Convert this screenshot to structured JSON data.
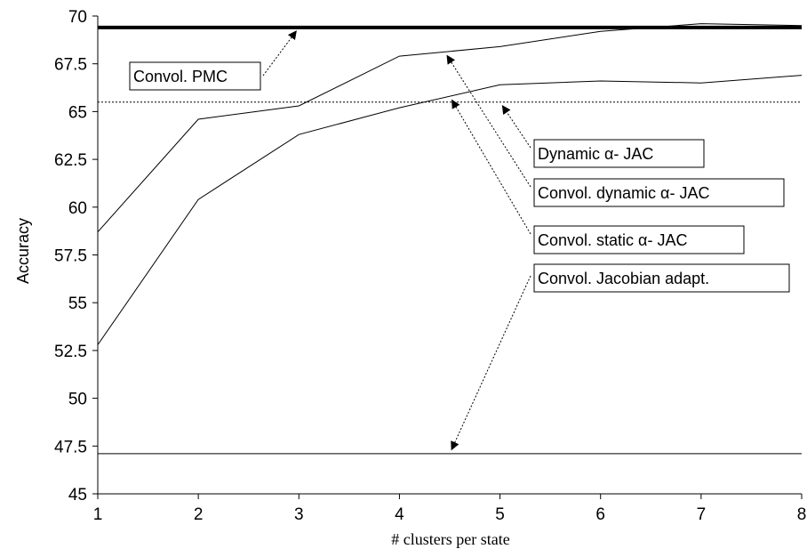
{
  "chart_data": {
    "type": "line",
    "title": "",
    "xlabel": "# clusters per state",
    "ylabel": "Accuracy",
    "x": [
      1,
      2,
      3,
      4,
      5,
      6,
      7,
      8
    ],
    "xlim": [
      1,
      8
    ],
    "ylim": [
      45,
      70
    ],
    "yticks": [
      45,
      47.5,
      50,
      52.5,
      55,
      57.5,
      60,
      62.5,
      65,
      67.5,
      70
    ],
    "ytick_labels": [
      "45",
      "47.5",
      "50",
      "52.5",
      "55",
      "57.5",
      "60",
      "62.5",
      "65",
      "67.5",
      "70"
    ],
    "xtick_labels": [
      "1",
      "2",
      "3",
      "4",
      "5",
      "6",
      "7",
      "8"
    ],
    "grid": false,
    "series": [
      {
        "name": "Convol. PMC",
        "style": "thick",
        "values": [
          69.4,
          69.4,
          69.4,
          69.4,
          69.4,
          69.4,
          69.4,
          69.4
        ]
      },
      {
        "name": "Convol. dynamic α- JAC",
        "style": "solid",
        "values": [
          58.7,
          64.6,
          65.3,
          67.9,
          68.4,
          69.2,
          69.6,
          69.5
        ]
      },
      {
        "name": "Dynamic α- JAC",
        "style": "dotted",
        "values": [
          65.5,
          65.5,
          65.5,
          65.5,
          65.5,
          65.5,
          65.5,
          65.5
        ]
      },
      {
        "name": "Convol. static α- JAC",
        "style": "solid",
        "values": [
          52.8,
          60.4,
          63.8,
          65.2,
          66.4,
          66.6,
          66.5,
          66.9
        ]
      },
      {
        "name": "Convol. Jacobian adapt.",
        "style": "solid",
        "values": [
          47.1,
          47.1,
          47.1,
          47.1,
          47.1,
          47.1,
          47.1,
          47.1
        ]
      }
    ],
    "annotations": [
      {
        "label": "Convol. PMC",
        "series_index": 0,
        "arrow_to_x": 3.0
      },
      {
        "label": "Dynamic α- JAC",
        "series_index": 2,
        "arrow_to_x": 5.0
      },
      {
        "label": "Convol. dynamic α- JAC",
        "series_index": 1,
        "arrow_to_x": 4.45
      },
      {
        "label": "Convol. static α- JAC",
        "series_index": 3,
        "arrow_to_x": 4.5
      },
      {
        "label": "Convol. Jacobian adapt.",
        "series_index": 4,
        "arrow_to_x": 4.5
      }
    ]
  }
}
